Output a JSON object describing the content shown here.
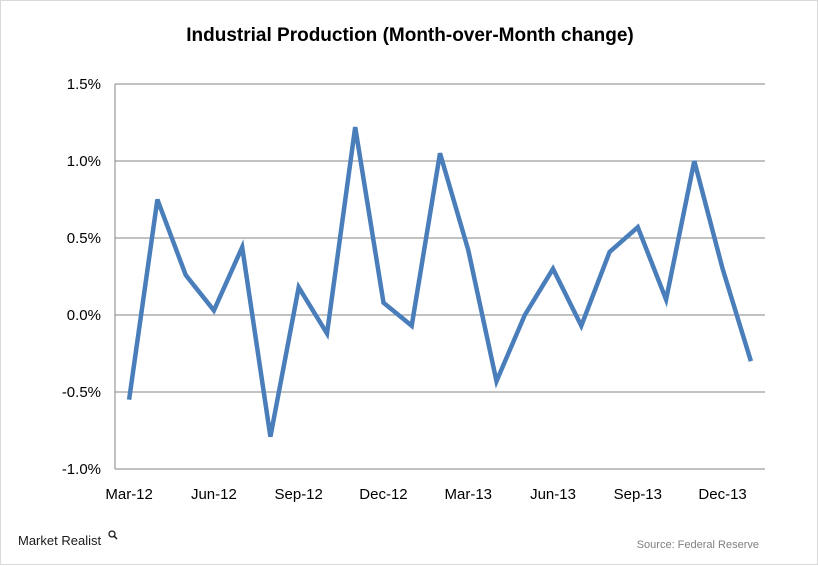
{
  "chart_data": {
    "type": "line",
    "title": "Industrial Production (Month-over-Month change)",
    "xlabel": "",
    "ylabel": "",
    "ylim": [
      -1.0,
      1.5
    ],
    "yticks": [
      "1.5%",
      "1.0%",
      "0.5%",
      "0.0%",
      "-0.5%",
      "-1.0%"
    ],
    "ytick_values": [
      1.5,
      1.0,
      0.5,
      0.0,
      -0.5,
      -1.0
    ],
    "x": [
      "Mar-12",
      "Apr-12",
      "May-12",
      "Jun-12",
      "Jul-12",
      "Aug-12",
      "Sep-12",
      "Oct-12",
      "Nov-12",
      "Dec-12",
      "Jan-13",
      "Feb-13",
      "Mar-13",
      "Apr-13",
      "May-13",
      "Jun-13",
      "Jul-13",
      "Aug-13",
      "Sep-13",
      "Oct-13",
      "Nov-13",
      "Dec-13",
      "Jan-14"
    ],
    "xtick_labels": [
      "Mar-12",
      "Jun-12",
      "Sep-12",
      "Dec-12",
      "Mar-13",
      "Jun-13",
      "Sep-13",
      "Dec-13"
    ],
    "series": [
      {
        "values": [
          -0.55,
          0.75,
          0.26,
          0.03,
          0.44,
          -0.79,
          0.18,
          -0.12,
          1.22,
          0.08,
          -0.07,
          1.05,
          0.42,
          -0.43,
          0.0,
          0.3,
          -0.07,
          0.41,
          0.57,
          0.1,
          1.0,
          0.3,
          -0.3
        ]
      }
    ],
    "grid": true,
    "legend": "none",
    "line_color": "#4a7ebb"
  },
  "brand": {
    "name": "Market Realist",
    "icon": "magnifier-icon"
  },
  "source": "Source: Federal Reserve"
}
